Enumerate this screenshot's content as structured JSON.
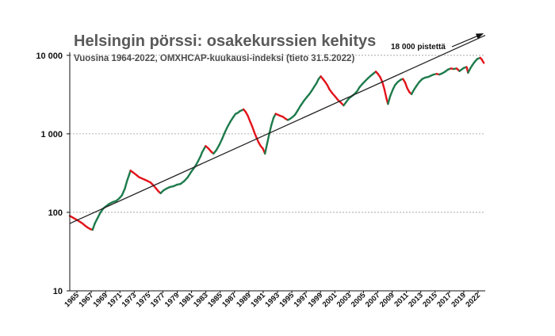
{
  "chart_data": {
    "type": "line",
    "title": "Helsingin pörssi: osakekurssien kehitys",
    "subtitle": "Vuosina 1964-2022, OMXHCAP-kuukausi-indeksi (tieto 31.5.2022)",
    "xlabel": "",
    "ylabel": "",
    "yscale": "log",
    "ylim": [
      10,
      20000
    ],
    "xlim": [
      1964.5,
      2022.6
    ],
    "grid": "horizontal-dashed",
    "y_ticks": [
      {
        "value": 10,
        "label": "10"
      },
      {
        "value": 100,
        "label": "100"
      },
      {
        "value": 1000,
        "label": "1 000"
      },
      {
        "value": 10000,
        "label": "10 000"
      }
    ],
    "x_ticks": [
      "1965",
      "1967",
      "1969",
      "1971",
      "1973",
      "1975",
      "1977",
      "1979",
      "1981",
      "1983",
      "1985",
      "1987",
      "1989",
      "1991",
      "1993",
      "1995",
      "1997",
      "1999",
      "2001",
      "2003",
      "2005",
      "2007",
      "2009",
      "2011",
      "2013",
      "2015",
      "2017",
      "2019",
      "2022"
    ],
    "colors": {
      "rising": "#1e7b4c",
      "falling": "#e3141b",
      "trend": "#222222",
      "grid": "#9a9a9a"
    },
    "series": [
      {
        "values": [
          [
            1964.5,
            90
          ],
          [
            1965.0,
            85
          ],
          [
            1965.5,
            80
          ],
          [
            1966.0,
            75
          ],
          [
            1966.3,
            72
          ],
          [
            1966.6,
            68
          ],
          [
            1967.0,
            64
          ],
          [
            1967.4,
            61
          ],
          [
            1967.7,
            60
          ],
          [
            1968.0,
            72
          ],
          [
            1968.4,
            85
          ],
          [
            1968.8,
            100
          ],
          [
            1969.2,
            112
          ],
          [
            1969.6,
            120
          ],
          [
            1970.0,
            128
          ],
          [
            1970.5,
            135
          ],
          [
            1971.0,
            140
          ],
          [
            1971.4,
            150
          ],
          [
            1971.8,
            165
          ],
          [
            1972.2,
            200
          ],
          [
            1972.5,
            250
          ],
          [
            1972.8,
            300
          ],
          [
            1973.0,
            340
          ],
          [
            1973.4,
            320
          ],
          [
            1973.8,
            300
          ],
          [
            1974.2,
            280
          ],
          [
            1974.6,
            270
          ],
          [
            1975.0,
            260
          ],
          [
            1975.4,
            250
          ],
          [
            1975.8,
            240
          ],
          [
            1976.2,
            220
          ],
          [
            1976.6,
            200
          ],
          [
            1976.9,
            185
          ],
          [
            1977.2,
            175
          ],
          [
            1977.6,
            190
          ],
          [
            1978.0,
            200
          ],
          [
            1978.5,
            210
          ],
          [
            1979.0,
            215
          ],
          [
            1979.5,
            225
          ],
          [
            1980.0,
            230
          ],
          [
            1980.5,
            250
          ],
          [
            1981.0,
            280
          ],
          [
            1981.5,
            330
          ],
          [
            1982.0,
            380
          ],
          [
            1982.4,
            440
          ],
          [
            1982.8,
            520
          ],
          [
            1983.0,
            580
          ],
          [
            1983.3,
            650
          ],
          [
            1983.5,
            700
          ],
          [
            1983.9,
            650
          ],
          [
            1984.3,
            590
          ],
          [
            1984.6,
            560
          ],
          [
            1985.0,
            620
          ],
          [
            1985.4,
            720
          ],
          [
            1985.8,
            860
          ],
          [
            1986.2,
            1050
          ],
          [
            1986.6,
            1250
          ],
          [
            1987.0,
            1450
          ],
          [
            1987.4,
            1650
          ],
          [
            1987.7,
            1800
          ],
          [
            1988.0,
            1850
          ],
          [
            1988.3,
            1950
          ],
          [
            1988.6,
            2000
          ],
          [
            1988.8,
            2050
          ],
          [
            1989.1,
            1900
          ],
          [
            1989.4,
            1700
          ],
          [
            1989.7,
            1450
          ],
          [
            1990.0,
            1250
          ],
          [
            1990.3,
            1050
          ],
          [
            1990.6,
            900
          ],
          [
            1990.9,
            780
          ],
          [
            1991.2,
            700
          ],
          [
            1991.5,
            650
          ],
          [
            1991.8,
            560
          ],
          [
            1992.1,
            750
          ],
          [
            1992.4,
            1000
          ],
          [
            1992.7,
            1300
          ],
          [
            1993.0,
            1600
          ],
          [
            1993.3,
            1800
          ],
          [
            1993.6,
            1750
          ],
          [
            1993.9,
            1700
          ],
          [
            1994.3,
            1650
          ],
          [
            1994.7,
            1550
          ],
          [
            1995.0,
            1500
          ],
          [
            1995.3,
            1550
          ],
          [
            1995.7,
            1650
          ],
          [
            1996.0,
            1750
          ],
          [
            1996.4,
            2000
          ],
          [
            1996.8,
            2300
          ],
          [
            1997.2,
            2600
          ],
          [
            1997.6,
            2900
          ],
          [
            1998.0,
            3200
          ],
          [
            1998.3,
            3500
          ],
          [
            1998.7,
            4000
          ],
          [
            1999.0,
            4400
          ],
          [
            1999.3,
            5000
          ],
          [
            1999.6,
            5400
          ],
          [
            1999.9,
            5000
          ],
          [
            2000.2,
            4600
          ],
          [
            2000.5,
            4200
          ],
          [
            2000.8,
            3700
          ],
          [
            2001.2,
            3300
          ],
          [
            2001.6,
            3000
          ],
          [
            2002.0,
            2700
          ],
          [
            2002.4,
            2500
          ],
          [
            2002.8,
            2300
          ],
          [
            2003.1,
            2500
          ],
          [
            2003.5,
            2800
          ],
          [
            2003.9,
            3000
          ],
          [
            2004.3,
            3200
          ],
          [
            2004.7,
            3500
          ],
          [
            2005.0,
            3900
          ],
          [
            2005.4,
            4300
          ],
          [
            2005.8,
            4700
          ],
          [
            2006.2,
            5100
          ],
          [
            2006.6,
            5500
          ],
          [
            2007.0,
            5900
          ],
          [
            2007.3,
            6200
          ],
          [
            2007.6,
            5800
          ],
          [
            2007.9,
            5300
          ],
          [
            2008.2,
            4600
          ],
          [
            2008.5,
            3700
          ],
          [
            2008.8,
            2800
          ],
          [
            2009.0,
            2400
          ],
          [
            2009.3,
            3000
          ],
          [
            2009.7,
            3700
          ],
          [
            2010.0,
            4200
          ],
          [
            2010.4,
            4600
          ],
          [
            2010.8,
            4900
          ],
          [
            2011.1,
            5000
          ],
          [
            2011.4,
            4500
          ],
          [
            2011.7,
            3800
          ],
          [
            2012.0,
            3400
          ],
          [
            2012.3,
            3200
          ],
          [
            2012.6,
            3600
          ],
          [
            2013.0,
            4100
          ],
          [
            2013.4,
            4600
          ],
          [
            2013.8,
            5000
          ],
          [
            2014.2,
            5200
          ],
          [
            2014.6,
            5300
          ],
          [
            2015.0,
            5500
          ],
          [
            2015.4,
            5700
          ],
          [
            2015.8,
            5800
          ],
          [
            2016.2,
            5700
          ],
          [
            2016.6,
            5900
          ],
          [
            2017.0,
            6200
          ],
          [
            2017.4,
            6600
          ],
          [
            2017.8,
            6800
          ],
          [
            2018.2,
            6700
          ],
          [
            2018.6,
            6800
          ],
          [
            2019.0,
            6300
          ],
          [
            2019.3,
            6600
          ],
          [
            2019.6,
            6900
          ],
          [
            2020.0,
            7100
          ],
          [
            2020.2,
            6000
          ],
          [
            2020.5,
            6800
          ],
          [
            2020.8,
            7500
          ],
          [
            2021.1,
            8200
          ],
          [
            2021.5,
            9000
          ],
          [
            2021.9,
            9300
          ],
          [
            2022.1,
            8900
          ],
          [
            2022.4,
            8000
          ]
        ]
      }
    ],
    "trend": {
      "from": [
        1964.5,
        72
      ],
      "to": [
        2022.6,
        18000
      ]
    },
    "annotation": {
      "label": "18 000 pistettä",
      "value": 18000
    }
  }
}
